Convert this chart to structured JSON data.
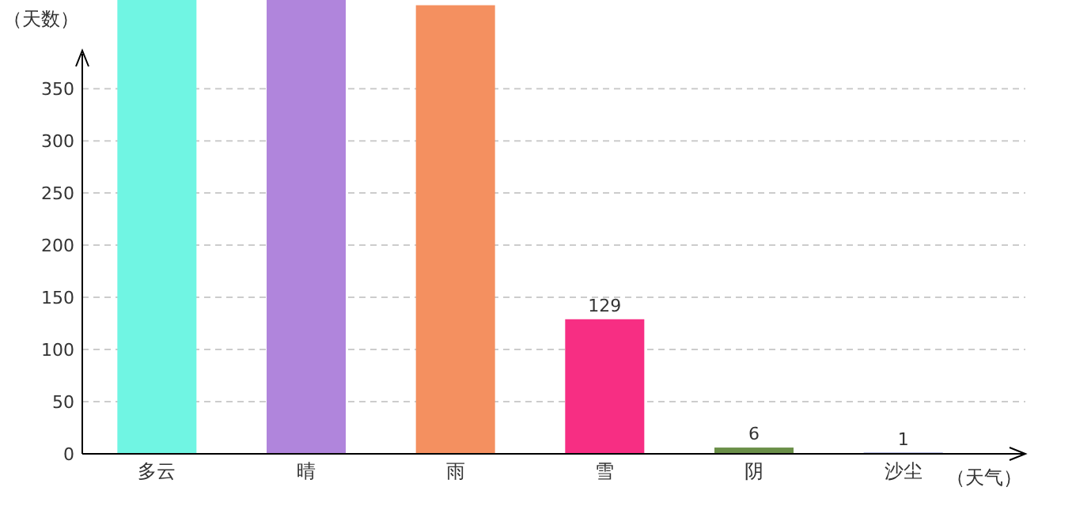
{
  "chart_data": {
    "type": "bar",
    "xlabel": "（天气）",
    "ylabel": "（天数）",
    "categories": [
      "多云",
      "晴",
      "雨",
      "雪",
      "阴",
      "沙尘"
    ],
    "values": [
      435,
      435,
      430,
      129,
      6,
      1
    ],
    "colors": [
      "#70f5e3",
      "#b085dc",
      "#f49060",
      "#f72e83",
      "#6a8f48",
      "#2233aa"
    ],
    "value_labels": [
      null,
      null,
      null,
      "129",
      "6",
      "1"
    ],
    "ylim": [
      0,
      435
    ],
    "yticks": [
      0,
      50,
      100,
      150,
      200,
      250,
      300,
      350
    ],
    "grid": "y"
  }
}
